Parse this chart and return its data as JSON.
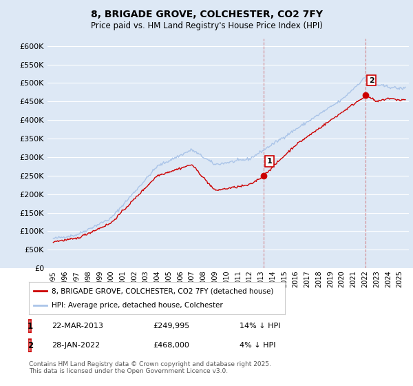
{
  "title": "8, BRIGADE GROVE, COLCHESTER, CO2 7FY",
  "subtitle": "Price paid vs. HM Land Registry's House Price Index (HPI)",
  "background_color": "#dde8f5",
  "hpi_color": "#aac4e8",
  "price_color": "#cc0000",
  "ylim": [
    0,
    620000
  ],
  "yticks": [
    0,
    50000,
    100000,
    150000,
    200000,
    250000,
    300000,
    350000,
    400000,
    450000,
    500000,
    550000,
    600000
  ],
  "xmin": 1994.5,
  "xmax": 2025.8,
  "marker1_x": 2013.22,
  "marker1_y": 249995,
  "marker1_label": "1",
  "marker2_x": 2022.07,
  "marker2_y": 468000,
  "marker2_label": "2",
  "legend_label_red": "8, BRIGADE GROVE, COLCHESTER, CO2 7FY (detached house)",
  "legend_label_blue": "HPI: Average price, detached house, Colchester",
  "annotation1_num": "1",
  "annotation1_date": "22-MAR-2013",
  "annotation1_price": "£249,995",
  "annotation1_hpi": "14% ↓ HPI",
  "annotation2_num": "2",
  "annotation2_date": "28-JAN-2022",
  "annotation2_price": "£468,000",
  "annotation2_hpi": "4% ↓ HPI",
  "footer": "Contains HM Land Registry data © Crown copyright and database right 2025.\nThis data is licensed under the Open Government Licence v3.0."
}
